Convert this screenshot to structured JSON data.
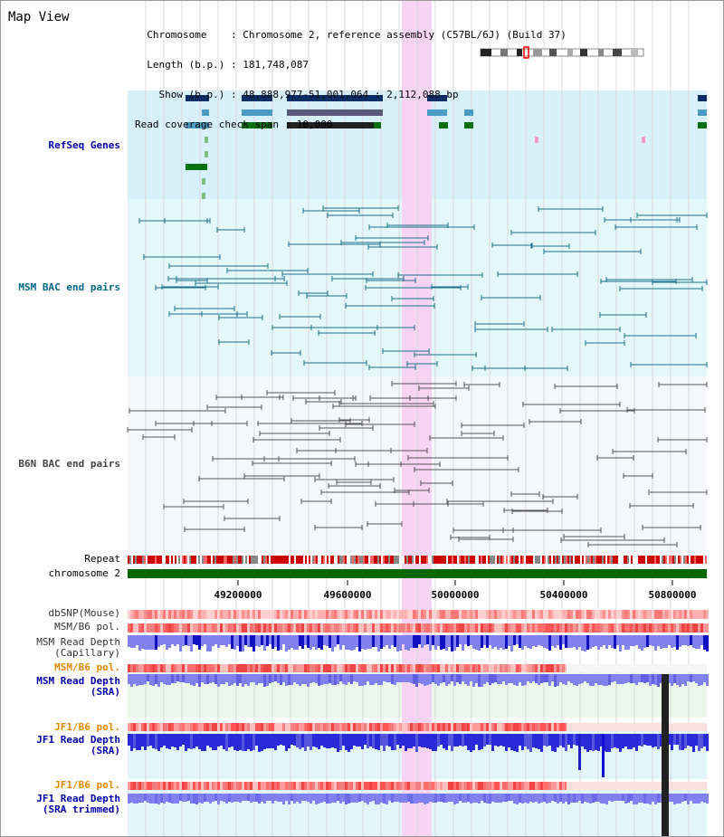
{
  "title": "Map View",
  "info": {
    "lines": [
      "  Chromosome    : Chromosome 2, reference assembly (C57BL/6J) (Build 37)",
      "  Length (b.p.) : 181,748,087",
      "    Show (b.p.) : 48,888,977-51,001,064 : 2,112,088 bp",
      "Read coverage check span : 10,000"
    ]
  },
  "tracks": {
    "refseq": "RefSeq Genes",
    "msm_bac": "MSM BAC end pairs",
    "b6n_bac": "B6N BAC end pairs",
    "repeat": "Repeat",
    "chromosome": "chromosome 2",
    "dbsnp": "dbSNP(Mouse)",
    "msm_b6_pol_1": "MSM/B6 pol.",
    "msm_depth_cap_1": "MSM Read Depth",
    "msm_depth_cap_2": "(Capillary)",
    "msm_b6_pol_2": "MSM/B6 pol.",
    "msm_depth_sra_1": "MSM Read Depth",
    "msm_depth_sra_2": "(SRA)",
    "jf1_b6_pol_1": "JF1/B6 pol.",
    "jf1_depth_sra_1": "JF1 Read Depth",
    "jf1_depth_sra_2": "(SRA)",
    "jf1_b6_pol_2": "JF1/B6 pol.",
    "jf1_depth_trim_1": "JF1 Read Depth",
    "jf1_depth_trim_2": "(SRA trimmed)"
  },
  "axis": {
    "ticks": [
      "49200000",
      "49600000",
      "50000000",
      "50400000",
      "50800000"
    ]
  },
  "colors": {
    "refseq_label": "#0000aa",
    "msm_label": "#006688",
    "b6n_label": "#444444",
    "pol_label": "#e08800",
    "depth_label": "#0000aa",
    "highlight": "#f7d4f4",
    "refseq_bg": "#d7f0fa",
    "msm_bg": "#e4f8fa",
    "b6n_bg": "#f5f7fa",
    "chromosome": "#006600"
  }
}
